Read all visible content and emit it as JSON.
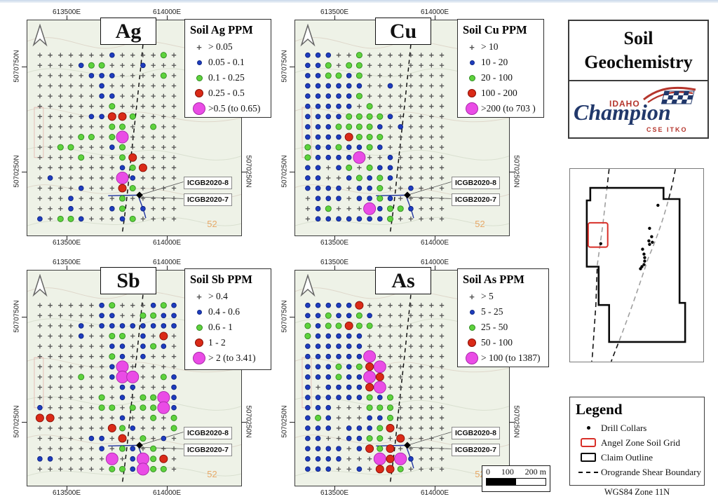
{
  "contour_label": "52",
  "colors": {
    "blue": "#1e3cbe",
    "green": "#5ed23d",
    "red": "#da2a17",
    "magenta": "#ea4ce6",
    "cross": "#555555",
    "accent_red": "#d82f28",
    "logo_blue": "#21386b",
    "logo_red": "#b5352c"
  },
  "panels": [
    {
      "id": "ag",
      "title": "Ag",
      "legend_title": "Soil Ag PPM",
      "legend_items": [
        {
          "sym": "cross",
          "label": "> 0.05"
        },
        {
          "sym": "blue",
          "label": "0.05 - 0.1"
        },
        {
          "sym": "green",
          "label": "0.1 - 0.25"
        },
        {
          "sym": "red",
          "label": "0.25 - 0.5"
        },
        {
          "sym": "magenta",
          "label": ">0.5 (to 0.65)"
        }
      ],
      "axis": {
        "top": [
          "613500E",
          "614000E"
        ],
        "bottom": [
          "613500E",
          "614000E"
        ],
        "left": [
          "5070750N",
          "5070250N"
        ],
        "right": [
          "5070250N"
        ]
      },
      "annotations": [
        "ICGB2020-8",
        "ICGB2020-7"
      ],
      "grid": [
        "+++++++b++++g+",
        "++++bgg+++b+++",
        "+++++bbb++++g+",
        "++++++b+++++++",
        "++++++bb++++++",
        "+++++++g++++++",
        "+++++bbrrg++++",
        "+++++++gg++g++",
        "++++gg+gM+++++",
        "++gg+++bg+++++",
        "++++g+++gr++++",
        "++++++++bgr+++",
        "+b++++++Mb++++",
        "++++b+++rg++++",
        "+++b++++g+++++",
        "+++b+++bg+b+++",
        "b+ggb+++bg++++"
      ]
    },
    {
      "id": "cu",
      "title": "Cu",
      "legend_title": "Soil Cu PPM",
      "legend_items": [
        {
          "sym": "cross",
          "label": "> 10"
        },
        {
          "sym": "blue",
          "label": "10 - 20"
        },
        {
          "sym": "green",
          "label": "20 - 100"
        },
        {
          "sym": "red",
          "label": "100 - 200"
        },
        {
          "sym": "magenta",
          "label": ">200 (to 703 )"
        }
      ],
      "axis": {
        "top": [
          "613500E",
          "614000E"
        ],
        "bottom": [
          "613500E",
          "614000E"
        ],
        "left": [
          "5070750N",
          "5070250N"
        ],
        "right": [
          "5070250N"
        ]
      },
      "annotations": [
        "ICGB2020-8",
        "ICGB2020-7"
      ],
      "grid": [
        "bbb++g++++++++",
        "bbg+gg++++++++",
        "bbggbg++++++++",
        "bbbbbb++b+++++",
        "bbbbbg++++++++",
        "bbbbb+g+++++++",
        "bbbbggggb+++++",
        "bbbggggb+b++++",
        "bbbbrggg++++++",
        "gbbgbbgb++++++",
        "gbbbbM++b+++++",
        "bb+bg+gbb+++++",
        "bb++bgbgb+++++",
        "bbbb+bbg++b+++",
        "+bbb+bbgb+++++",
        "+bg+++Mbggb+++",
        "+bbbbbbbg+++++"
      ]
    },
    {
      "id": "sb",
      "title": "Sb",
      "legend_title": "Soil Sb PPM",
      "legend_items": [
        {
          "sym": "cross",
          "label": "> 0.4"
        },
        {
          "sym": "blue",
          "label": "0.4 - 0.6"
        },
        {
          "sym": "green",
          "label": "0.6 - 1"
        },
        {
          "sym": "red",
          "label": "1 - 2"
        },
        {
          "sym": "magenta",
          "label": "> 2 (to 3.41)"
        }
      ],
      "axis": {
        "top": [
          "613500E",
          "614000E"
        ],
        "bottom": [
          "613500E",
          "614000E"
        ],
        "left": [
          "5070750N",
          "5070250N"
        ],
        "right": [
          "5070250N"
        ]
      },
      "annotations": [
        "ICGB2020-8",
        "ICGB2020-7"
      ],
      "grid": [
        "++++++bg+++bgb",
        "++++++bb++ggbb",
        "++++b+bbbbbbbb",
        "++++b++gg+b+r+",
        "+++++++bb+bgb+",
        "+++++++gb+b+++",
        "+++++++bM+++++",
        "++++g++bMM++gb",
        "++++++++bb+++b",
        "++++++g+b+ggMb",
        "b+++++gg+gggMb",
        "rr++++++b++g+g",
        "+++++++rgb+++g",
        "+++++bb+r+g+b+",
        "++++++b+gb+g++",
        "bb+++++M+bMgr+",
        "+++++++ggbMgg+"
      ]
    },
    {
      "id": "as",
      "title": "As",
      "legend_title": "Soil As PPM",
      "legend_items": [
        {
          "sym": "cross",
          "label": "> 5"
        },
        {
          "sym": "blue",
          "label": "5 - 25"
        },
        {
          "sym": "green",
          "label": "25 - 50"
        },
        {
          "sym": "red",
          "label": "50 - 100"
        },
        {
          "sym": "magenta",
          "label": "> 100 (to 1387)"
        }
      ],
      "axis": {
        "top": [
          "613500E",
          "614000E"
        ],
        "bottom": [
          "613500E",
          "614000E"
        ],
        "left": [
          "5070750N",
          "5070250N"
        ],
        "right": [
          "5070250N"
        ]
      },
      "annotations": [
        "ICGB2020-8",
        "ICGB2020-7"
      ],
      "grid": [
        "bbbbbr++++++++",
        "bbgbbgb+++++++",
        "gbggrgg+++++++",
        "gbbbbb++++++++",
        "bbbbbb++++++++",
        "bbbbbbM+++++++",
        "bbbgbgrM++++++",
        "bbbgbbMr++++++",
        "b+bbbbrM++++++",
        "bbbbbbgbg+++++",
        "bbb+++ggg+++++",
        "bgb+++bbg+++++",
        "bbb+bbbgr+++++",
        "bb++bbgg+r++++",
        "bbbb+brgr+++++",
        "bbbb+++MrMb+++",
        "bbb++b+rrg++++"
      ]
    }
  ],
  "sidebar": {
    "title_lines": [
      "Soil",
      "Geochemistry"
    ],
    "logo": {
      "top": "IDAHO",
      "main": "Champion",
      "sub": "CSE ITKO"
    },
    "inset": {
      "collars": [
        [
          126,
          52
        ],
        [
          114,
          85
        ],
        [
          117,
          97
        ],
        [
          113,
          103
        ],
        [
          118,
          105
        ],
        [
          114,
          108
        ],
        [
          104,
          115
        ],
        [
          106,
          122
        ],
        [
          107,
          127
        ],
        [
          107,
          132
        ],
        [
          106,
          137
        ],
        [
          103,
          140
        ],
        [
          101,
          143
        ],
        [
          44,
          107
        ]
      ]
    },
    "legend": {
      "title": "Legend",
      "items": [
        {
          "sym": "drill",
          "label": "Drill Collars"
        },
        {
          "sym": "redrect",
          "label": "Angel Zone Soil Grid"
        },
        {
          "sym": "blackrect",
          "label": "Claim Outline"
        },
        {
          "sym": "dash",
          "label": "Orogrande Shear Boundary"
        }
      ]
    },
    "datum": "WGS84 Zone 11N"
  },
  "scalebar": {
    "labels": [
      "0",
      "100",
      "200 m"
    ]
  }
}
